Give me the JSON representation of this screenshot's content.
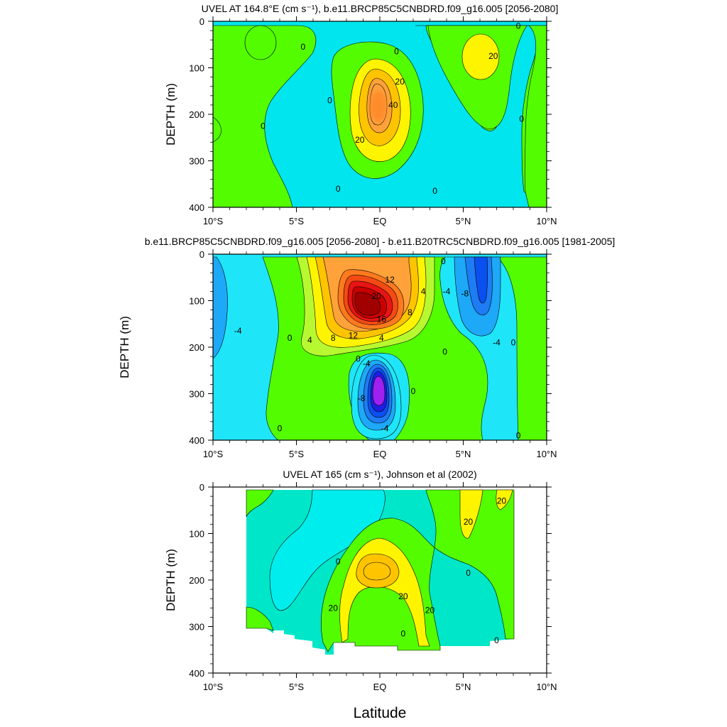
{
  "figure": {
    "xlabel": "Latitude"
  },
  "chart_data": [
    {
      "type": "heatmap",
      "title": "UVEL AT 164.8°E (cm s⁻¹), b.e11.BRCP85C5CNBDRD.f09_g16.005 [2056-2080]",
      "xlabel": "",
      "ylabel": "DEPTH (m)",
      "xlim": [
        -10,
        10
      ],
      "ylim": [
        400,
        0
      ],
      "x_ticks": [
        "10°S",
        "5°S",
        "EQ",
        "5°N",
        "10°N"
      ],
      "y_ticks": [
        "0",
        "100",
        "200",
        "300",
        "400"
      ],
      "contour_interval": 10,
      "colors": {
        "neg1": "#00e5ee",
        "zero": "#54fc00",
        "pos1": "#fff400",
        "pos2": "#ffc400",
        "pos3": "#ffa23a"
      },
      "features": [
        {
          "kind": "max",
          "lat": 0,
          "depth": 160,
          "peak": 45
        },
        {
          "kind": "max",
          "lat": 6,
          "depth": 75,
          "peak": 24
        },
        {
          "kind": "max",
          "lat": -7.5,
          "depth": 45,
          "peak": 8
        }
      ],
      "contour_labels": [
        {
          "text": "0",
          "lat": -3.0,
          "depth": 170
        },
        {
          "text": "0",
          "lat": 1.0,
          "depth": 65
        },
        {
          "text": "20",
          "lat": 1.2,
          "depth": 130
        },
        {
          "text": "40",
          "lat": 0.8,
          "depth": 180
        },
        {
          "text": "20",
          "lat": -1.2,
          "depth": 255
        },
        {
          "text": "20",
          "lat": 6.8,
          "depth": 75
        },
        {
          "text": "0",
          "lat": -4.6,
          "depth": 55
        },
        {
          "text": "0",
          "lat": -7.0,
          "depth": 225
        },
        {
          "text": "0",
          "lat": -2.5,
          "depth": 360
        },
        {
          "text": "0",
          "lat": 3.3,
          "depth": 365
        },
        {
          "text": "0",
          "lat": 8.5,
          "depth": 210
        },
        {
          "text": "0",
          "lat": 8.3,
          "depth": 10
        }
      ]
    },
    {
      "type": "heatmap",
      "title": "b.e11.BRCP85C5CNBDRD.f09_g16.005 [2056-2080] - b.e11.B20TRC5CNBDRD.f09_g16.005 [1981-2005]",
      "xlabel": "",
      "ylabel": "DEPTH (m)",
      "xlim": [
        -10,
        10
      ],
      "ylim": [
        400,
        0
      ],
      "x_ticks": [
        "10°S",
        "5°S",
        "EQ",
        "5°N",
        "10°N"
      ],
      "y_ticks": [
        "0",
        "100",
        "200",
        "300",
        "400"
      ],
      "contour_interval": 2,
      "colors": {
        "neg6": "#a020f0",
        "neg5": "#1e1ee0",
        "neg4": "#0a50f0",
        "neg3": "#1e7cf4",
        "neg2": "#1ea8f8",
        "neg1": "#1ee6f8",
        "zero": "#54fc00",
        "pos1": "#b8f830",
        "pos2": "#fff400",
        "pos3": "#ffc400",
        "pos4": "#ffa23a",
        "pos5": "#ff7a1e",
        "pos6": "#f44a14",
        "pos7": "#e81414",
        "pos8": "#c80000",
        "pos9": "#a00000"
      },
      "features": [
        {
          "kind": "max",
          "lat": -1.0,
          "depth": 115,
          "peak": 24
        },
        {
          "kind": "min",
          "lat": -0.2,
          "depth": 285,
          "peak": -12
        },
        {
          "kind": "min",
          "lat": 6.0,
          "depth": 110,
          "peak": -8
        },
        {
          "kind": "min",
          "lat": -8.8,
          "depth": 140,
          "peak": -4
        }
      ],
      "contour_labels": [
        {
          "text": "12",
          "lat": 0.6,
          "depth": 55
        },
        {
          "text": "20",
          "lat": -0.2,
          "depth": 90
        },
        {
          "text": "16",
          "lat": 0.1,
          "depth": 140
        },
        {
          "text": "12",
          "lat": -1.6,
          "depth": 175
        },
        {
          "text": "8",
          "lat": -2.8,
          "depth": 180
        },
        {
          "text": "4",
          "lat": -4.2,
          "depth": 185
        },
        {
          "text": "4",
          "lat": 0.1,
          "depth": 180
        },
        {
          "text": "8",
          "lat": 1.8,
          "depth": 125
        },
        {
          "text": "4",
          "lat": 2.6,
          "depth": 80
        },
        {
          "text": "0",
          "lat": 3.8,
          "depth": 15
        },
        {
          "text": "-4",
          "lat": 4.0,
          "depth": 80
        },
        {
          "text": "-8",
          "lat": 5.1,
          "depth": 85
        },
        {
          "text": "-4",
          "lat": -8.5,
          "depth": 165
        },
        {
          "text": "0",
          "lat": -5.4,
          "depth": 180
        },
        {
          "text": "0",
          "lat": -1.3,
          "depth": 225
        },
        {
          "text": "-4",
          "lat": -0.8,
          "depth": 235
        },
        {
          "text": "-8",
          "lat": -1.1,
          "depth": 310
        },
        {
          "text": "-4",
          "lat": 0.3,
          "depth": 375
        },
        {
          "text": "0",
          "lat": 2.0,
          "depth": 295
        },
        {
          "text": "0",
          "lat": 3.9,
          "depth": 210
        },
        {
          "text": "-4",
          "lat": 7.0,
          "depth": 190
        },
        {
          "text": "0",
          "lat": 8.0,
          "depth": 190
        },
        {
          "text": "0",
          "lat": -6.0,
          "depth": 375
        },
        {
          "text": "0",
          "lat": 8.3,
          "depth": 390
        }
      ]
    },
    {
      "type": "heatmap",
      "title": "UVEL AT 165 (cm s⁻¹), Johnson et al (2002)",
      "xlabel": "Latitude",
      "ylabel": "DEPTH (m)",
      "xlim": [
        -10,
        10
      ],
      "ylim": [
        400,
        0
      ],
      "x_ticks": [
        "10°S",
        "5°S",
        "EQ",
        "5°N",
        "10°N"
      ],
      "y_ticks": [
        "0",
        "100",
        "200",
        "300",
        "400"
      ],
      "contour_interval": 10,
      "data_extent": {
        "lat": [
          -8,
          8
        ],
        "depth": [
          5,
          360
        ]
      },
      "colors": {
        "neg2": "#00eded",
        "neg1": "#00e6c8",
        "zero": "#54fc00",
        "pos1": "#fff400",
        "pos2": "#ffc400"
      },
      "features": [
        {
          "kind": "max",
          "lat": -0.3,
          "depth": 185,
          "peak": 33
        },
        {
          "kind": "max",
          "lat": 5.3,
          "depth": 50,
          "peak": 24
        },
        {
          "kind": "max",
          "lat": 7.3,
          "depth": 40,
          "peak": 22
        }
      ],
      "contour_labels": [
        {
          "text": "20",
          "lat": 7.3,
          "depth": 30
        },
        {
          "text": "20",
          "lat": 5.3,
          "depth": 75
        },
        {
          "text": "0",
          "lat": 5.3,
          "depth": 185
        },
        {
          "text": "0",
          "lat": -2.5,
          "depth": 160
        },
        {
          "text": "20",
          "lat": 1.4,
          "depth": 235
        },
        {
          "text": "20",
          "lat": -2.8,
          "depth": 260
        },
        {
          "text": "20",
          "lat": 3.0,
          "depth": 265
        },
        {
          "text": "0",
          "lat": 1.4,
          "depth": 315
        },
        {
          "text": "0",
          "lat": 7.0,
          "depth": 330
        }
      ]
    }
  ]
}
